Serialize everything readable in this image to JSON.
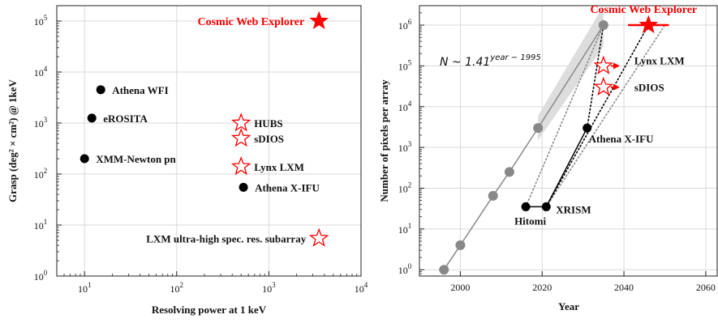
{
  "chart_data": [
    {
      "type": "scatter",
      "xlabel": "Resolving power at 1 keV",
      "ylabel": "Grasp (deg² × cm²) @ 1keV",
      "xscale": "log",
      "yscale": "log",
      "xlim": [
        5,
        10000
      ],
      "ylim": [
        1,
        200000
      ],
      "xticks": [
        {
          "base": "10",
          "exp": "1",
          "value": 10
        },
        {
          "base": "10",
          "exp": "2",
          "value": 100
        },
        {
          "base": "10",
          "exp": "3",
          "value": 1000
        },
        {
          "base": "10",
          "exp": "4",
          "value": 10000
        }
      ],
      "yticks": [
        {
          "base": "10",
          "exp": "0",
          "value": 1
        },
        {
          "base": "10",
          "exp": "1",
          "value": 10
        },
        {
          "base": "10",
          "exp": "2",
          "value": 100
        },
        {
          "base": "10",
          "exp": "3",
          "value": 1000
        },
        {
          "base": "10",
          "exp": "4",
          "value": 10000
        },
        {
          "base": "10",
          "exp": "5",
          "value": 100000
        }
      ],
      "grid": true,
      "points": [
        {
          "label": "Athena WFI",
          "x": 15,
          "y": 4500,
          "marker": "dot",
          "color": "#000000"
        },
        {
          "label": "eROSITA",
          "x": 12,
          "y": 1250,
          "marker": "dot",
          "color": "#000000"
        },
        {
          "label": "XMM-Newton pn",
          "x": 10,
          "y": 200,
          "marker": "dot",
          "color": "#000000"
        },
        {
          "label": "Athena X-IFU",
          "x": 530,
          "y": 55,
          "marker": "dot",
          "color": "#000000"
        },
        {
          "label": "HUBS",
          "x": 500,
          "y": 1000,
          "marker": "star-open",
          "color": "#ff0000"
        },
        {
          "label": "sDIOS",
          "x": 500,
          "y": 500,
          "marker": "star-open",
          "color": "#ff0000"
        },
        {
          "label": "Lynx LXM",
          "x": 500,
          "y": 140,
          "marker": "star-open",
          "color": "#ff0000"
        },
        {
          "label": "LXM ultra-high spec. res. subarray",
          "x": 3500,
          "y": 5.5,
          "marker": "star-open",
          "color": "#ff0000"
        },
        {
          "label": "Cosmic Web Explorer",
          "x": 3500,
          "y": 100000,
          "marker": "star-filled",
          "color": "#ff0000"
        }
      ]
    },
    {
      "type": "line",
      "xlabel": "Year",
      "ylabel": "Number of pixels per array",
      "yscale": "log",
      "xlim": [
        1990,
        2063
      ],
      "ylim": [
        0.7,
        3000000
      ],
      "xticks": [
        {
          "label": "2000",
          "value": 2000
        },
        {
          "label": "2020",
          "value": 2020
        },
        {
          "label": "2040",
          "value": 2040
        },
        {
          "label": "2060",
          "value": 2060
        }
      ],
      "yticks": [
        {
          "base": "10",
          "exp": "0",
          "value": 1
        },
        {
          "base": "10",
          "exp": "1",
          "value": 10
        },
        {
          "base": "10",
          "exp": "2",
          "value": 100
        },
        {
          "base": "10",
          "exp": "3",
          "value": 1000
        },
        {
          "base": "10",
          "exp": "4",
          "value": 10000
        },
        {
          "base": "10",
          "exp": "5",
          "value": 100000
        },
        {
          "base": "10",
          "exp": "6",
          "value": 1000000
        }
      ],
      "grid": true,
      "formula": {
        "main": "N ~ 1.41",
        "sup": "year − 1995"
      },
      "trend": {
        "x": [
          1996,
          2000,
          2008,
          2012,
          2019,
          2035
        ],
        "y": [
          1,
          4,
          65,
          250,
          3000,
          1000000
        ],
        "color": "#888888"
      },
      "band": {
        "lower": [
          [
            2019,
            1500
          ],
          [
            2035,
            300000
          ]
        ],
        "upper": [
          [
            2019,
            6000
          ],
          [
            2035,
            3000000
          ]
        ],
        "color": "#dddddd"
      },
      "projections": [
        {
          "x": [
            2016,
            2035
          ],
          "y": [
            35,
            1000000
          ],
          "style": "dotted",
          "color": "#888888"
        },
        {
          "x": [
            2021,
            2050
          ],
          "y": [
            35,
            1000000
          ],
          "style": "dotted",
          "color": "#888888"
        },
        {
          "x": [
            2031,
            2035
          ],
          "y": [
            3000,
            1000000
          ],
          "style": "dotted",
          "color": "#000000"
        },
        {
          "x": [
            2021,
            2046
          ],
          "y": [
            35,
            1000000
          ],
          "style": "dotted",
          "color": "#000000"
        }
      ],
      "segments": [
        {
          "x": [
            2016,
            2021
          ],
          "y": [
            35,
            35
          ],
          "color": "#000000"
        },
        {
          "x": [
            2021,
            2031
          ],
          "y": [
            35,
            3000
          ],
          "color": "#000000"
        }
      ],
      "points": [
        {
          "label": "Hitomi",
          "x": 2016,
          "y": 35,
          "marker": "dot",
          "color": "#000000"
        },
        {
          "label": "XRISM",
          "x": 2021,
          "y": 35,
          "marker": "dot",
          "color": "#000000"
        },
        {
          "label": "Athena X-IFU",
          "x": 2031,
          "y": 3000,
          "marker": "dot",
          "color": "#000000"
        },
        {
          "label": "Lynx LXM",
          "x": 2035,
          "y": 100000,
          "marker": "star-open",
          "color": "#ff0000",
          "arrow_to_x": 2039
        },
        {
          "label": "sDIOS",
          "x": 2035,
          "y": 30000,
          "marker": "star-open",
          "color": "#ff0000",
          "arrow_to_x": 2039
        },
        {
          "label": "Cosmic Web Explorer",
          "x": 2046,
          "y": 1000000,
          "marker": "star-filled",
          "color": "#ff0000",
          "err_x": [
            2041,
            2051
          ]
        }
      ]
    }
  ]
}
